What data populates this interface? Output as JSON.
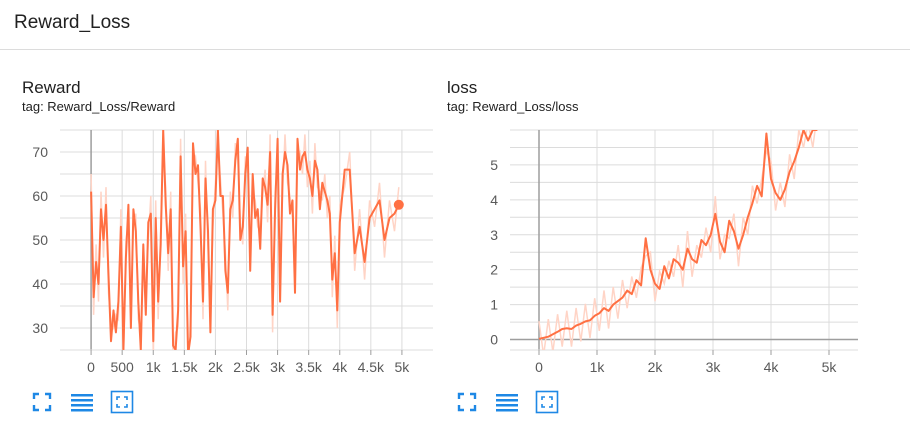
{
  "section": {
    "title": "Reward_Loss"
  },
  "colors": {
    "smoothed": "#ff7043",
    "raw": "#ffd4c6",
    "grid": "#dcdcdc",
    "axis": "#9e9e9e"
  },
  "icons": [
    "fullscreen-icon",
    "toggle-log-scale-icon",
    "fit-domain-icon"
  ],
  "chart_data": [
    {
      "type": "line",
      "title": "Reward",
      "subtitle": "tag: Reward_Loss/Reward",
      "xlim": [
        -500,
        5500
      ],
      "ylim": [
        25,
        75
      ],
      "x_ticks": [
        0,
        500,
        1000,
        1500,
        2000,
        2500,
        3000,
        3500,
        4000,
        4500,
        5000
      ],
      "x_tick_labels": [
        "0",
        "500",
        "1k",
        "1.5k",
        "2k",
        "2.5k",
        "3k",
        "3.5k",
        "4k",
        "4.5k",
        "5k"
      ],
      "y_ticks": [
        30,
        40,
        50,
        60,
        70
      ],
      "y_tick_labels": [
        "30",
        "40",
        "50",
        "60",
        "70"
      ],
      "grid": true,
      "series": [
        {
          "x": [
            0,
            40,
            80,
            120,
            160,
            200,
            240,
            280,
            320,
            360,
            400,
            440,
            480,
            520,
            560,
            600,
            640,
            680,
            720,
            760,
            800,
            840,
            880,
            920,
            960,
            1000,
            1040,
            1080,
            1120,
            1160,
            1200,
            1240,
            1280,
            1320,
            1360,
            1400,
            1440,
            1480,
            1520,
            1560,
            1600,
            1640,
            1680,
            1720,
            1760,
            1800,
            1840,
            1880,
            1920,
            1960,
            2000,
            2040,
            2080,
            2120,
            2160,
            2200,
            2240,
            2280,
            2320,
            2360,
            2400,
            2440,
            2480,
            2520,
            2560,
            2600,
            2640,
            2680,
            2720,
            2760,
            2800,
            2840,
            2880,
            2920,
            2960,
            3000,
            3040,
            3080,
            3120,
            3160,
            3200,
            3240,
            3280,
            3320,
            3360,
            3400,
            3440,
            3480,
            3520,
            3560,
            3600,
            3640,
            3680,
            3720,
            3760,
            3800,
            3840,
            3880,
            3920,
            3960,
            4000,
            4080,
            4160,
            4240,
            4320,
            4400,
            4480,
            4560,
            4640,
            4720,
            4800,
            4880,
            4950
          ],
          "y": [
            61,
            37,
            45,
            40,
            57,
            50,
            58,
            42,
            27,
            34,
            29,
            36,
            53,
            25,
            46,
            58,
            30,
            57,
            52,
            36,
            25,
            49,
            33,
            54,
            56,
            27,
            55,
            36,
            49,
            75,
            58,
            47,
            57,
            26,
            25,
            34,
            69,
            44,
            52,
            24,
            28,
            72,
            65,
            67,
            53,
            36,
            64,
            52,
            29,
            57,
            59,
            75,
            60,
            60,
            43,
            38,
            57,
            59,
            68,
            73,
            50,
            53,
            65,
            71,
            43,
            65,
            55,
            57,
            48,
            64,
            62,
            58,
            70,
            33,
            57,
            73,
            36,
            65,
            70,
            67,
            56,
            59,
            38,
            73,
            66,
            69,
            70,
            66,
            64,
            60,
            68,
            66,
            57,
            63,
            61,
            59,
            56,
            41,
            47,
            34,
            54,
            66,
            66,
            47,
            53,
            45,
            55,
            57,
            59,
            50,
            55,
            56,
            58
          ]
        }
      ]
    },
    {
      "type": "line",
      "title": "loss",
      "subtitle": "tag: Reward_Loss/loss",
      "xlim": [
        -500,
        5500
      ],
      "ylim": [
        -0.3,
        6
      ],
      "x_ticks": [
        0,
        1000,
        2000,
        3000,
        4000,
        5000
      ],
      "x_tick_labels": [
        "0",
        "1k",
        "2k",
        "3k",
        "4k",
        "5k"
      ],
      "y_ticks": [
        0,
        1,
        2,
        3,
        4,
        5
      ],
      "y_tick_labels": [
        "0",
        "1",
        "2",
        "3",
        "4",
        "5"
      ],
      "grid": true,
      "series": [
        {
          "x": [
            0,
            80,
            160,
            240,
            320,
            400,
            480,
            560,
            640,
            720,
            800,
            880,
            960,
            1040,
            1120,
            1200,
            1280,
            1360,
            1440,
            1520,
            1600,
            1680,
            1760,
            1840,
            1920,
            2000,
            2080,
            2160,
            2240,
            2320,
            2400,
            2480,
            2560,
            2640,
            2720,
            2800,
            2880,
            2960,
            3040,
            3120,
            3200,
            3280,
            3360,
            3440,
            3520,
            3600,
            3680,
            3760,
            3840,
            3920,
            4000,
            4080,
            4160,
            4240,
            4320,
            4400,
            4480,
            4560,
            4640,
            4720,
            4800
          ],
          "y": [
            0.02,
            0.05,
            0.08,
            0.15,
            0.22,
            0.3,
            0.32,
            0.3,
            0.4,
            0.45,
            0.52,
            0.55,
            0.68,
            0.75,
            0.9,
            0.82,
            1.0,
            1.1,
            1.2,
            1.4,
            1.3,
            1.7,
            1.55,
            2.9,
            2.0,
            1.6,
            1.45,
            2.1,
            1.75,
            2.3,
            2.2,
            2.0,
            2.6,
            2.3,
            2.2,
            2.85,
            2.7,
            3.0,
            3.6,
            2.8,
            2.5,
            3.4,
            3.1,
            2.6,
            3.0,
            3.5,
            3.9,
            4.4,
            4.1,
            5.9,
            4.6,
            4.2,
            4.0,
            4.3,
            4.8,
            5.1,
            5.5,
            6.0,
            5.7,
            6.0,
            6.0
          ]
        }
      ]
    }
  ]
}
